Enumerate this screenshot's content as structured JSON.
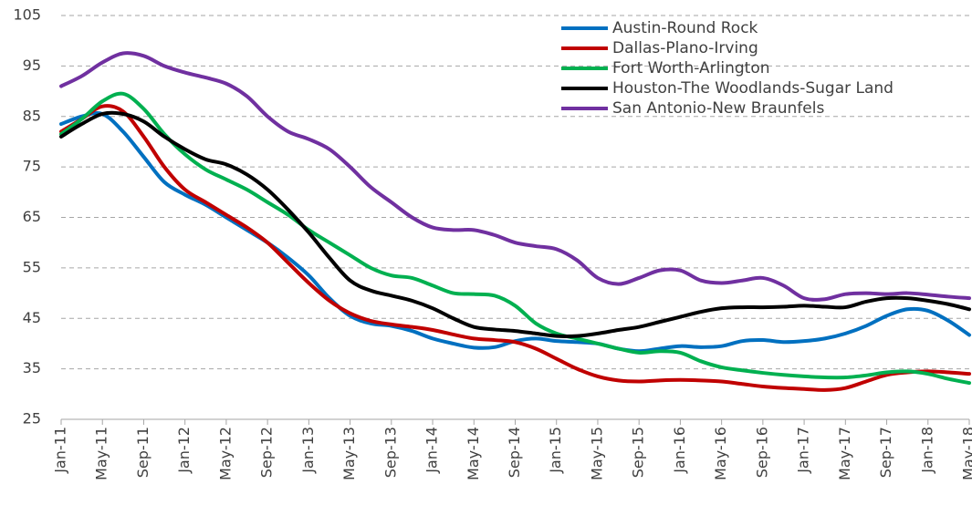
{
  "chart_data": {
    "type": "line",
    "categories": [
      "Jan-11",
      null,
      "May-11",
      null,
      "Sep-11",
      null,
      "Jan-12",
      null,
      "May-12",
      null,
      "Sep-12",
      null,
      "Jan-13",
      null,
      "May-13",
      null,
      "Sep-13",
      null,
      "Jan-14",
      null,
      "May-14",
      null,
      "Sep-14",
      null,
      "Jan-15",
      null,
      "May-15",
      null,
      "Sep-15",
      null,
      "Jan-16",
      null,
      "May-16",
      null,
      "Sep-16",
      null,
      "Jan-17",
      null,
      "May-17",
      null,
      "Sep-17",
      null,
      "Jan-18",
      null,
      "May-18"
    ],
    "series": [
      {
        "name": "Austin-Round Rock",
        "color": "#0070c0",
        "values": [
          83.5,
          85,
          85.5,
          82,
          77,
          72,
          69.5,
          67.5,
          65,
          62.5,
          60,
          57,
          53.5,
          49,
          45.5,
          44,
          43.5,
          42.5,
          41,
          40,
          39.2,
          39.3,
          40.5,
          41,
          40.5,
          40.3,
          40,
          39,
          38.5,
          39,
          39.5,
          39.3,
          39.5,
          40.5,
          40.7,
          40.3,
          40.5,
          41,
          42,
          43.5,
          45.5,
          46.8,
          46.5,
          44.5,
          41.7
        ]
      },
      {
        "name": "Dallas-Plano-Irving",
        "color": "#c00000",
        "values": [
          82,
          84.5,
          87,
          86,
          81,
          75,
          70.5,
          68,
          65.5,
          63,
          60,
          56,
          52,
          48.5,
          46,
          44.5,
          43.8,
          43.3,
          42.7,
          41.8,
          41,
          40.7,
          40.3,
          39,
          37,
          35,
          33.5,
          32.7,
          32.5,
          32.7,
          32.8,
          32.7,
          32.5,
          32,
          31.5,
          31.2,
          31,
          30.8,
          31.2,
          32.5,
          33.8,
          34.3,
          34.5,
          34.3,
          34
        ]
      },
      {
        "name": "Fort Worth-Arlington",
        "color": "#00b050",
        "values": [
          81.5,
          84.5,
          88,
          89.5,
          86.5,
          81.5,
          77.5,
          74.5,
          72.5,
          70.5,
          68,
          65.5,
          62.5,
          60,
          57.5,
          55,
          53.5,
          53,
          51.5,
          50,
          49.8,
          49.5,
          47.5,
          44,
          42,
          41,
          40,
          39,
          38.2,
          38.5,
          38.2,
          36.5,
          35.3,
          34.7,
          34.2,
          33.8,
          33.5,
          33.3,
          33.3,
          33.7,
          34.3,
          34.5,
          34,
          33,
          32.2
        ]
      },
      {
        "name": "Houston-The Woodlands-Sugar Land",
        "color": "#000000",
        "values": [
          81,
          83.5,
          85.5,
          85.5,
          84,
          81,
          78.5,
          76.5,
          75.5,
          73.5,
          70.5,
          66.5,
          62,
          57,
          52.5,
          50.5,
          49.5,
          48.5,
          47,
          45,
          43.3,
          42.8,
          42.5,
          42,
          41.5,
          41.5,
          42,
          42.7,
          43.3,
          44.3,
          45.3,
          46.3,
          47,
          47.2,
          47.2,
          47.3,
          47.5,
          47.3,
          47.2,
          48.3,
          49,
          49,
          48.5,
          47.8,
          46.8
        ]
      },
      {
        "name": "San Antonio-New Braunfels",
        "color": "#7030a0",
        "values": [
          91,
          93,
          95.7,
          97.5,
          97,
          95,
          93.7,
          92.7,
          91.5,
          89,
          85,
          82,
          80.5,
          78.5,
          75,
          71,
          68,
          65,
          63,
          62.5,
          62.5,
          61.5,
          60,
          59.3,
          58.7,
          56.5,
          53,
          51.8,
          53,
          54.5,
          54.5,
          52.5,
          52,
          52.5,
          53,
          51.5,
          49,
          48.8,
          49.8,
          50,
          49.8,
          50,
          49.7,
          49.3,
          49
        ]
      }
    ],
    "ylim": [
      25,
      105
    ],
    "yticks": [
      25,
      35,
      45,
      55,
      65,
      75,
      85,
      95,
      105
    ],
    "grid": true,
    "legend": "top-right"
  }
}
